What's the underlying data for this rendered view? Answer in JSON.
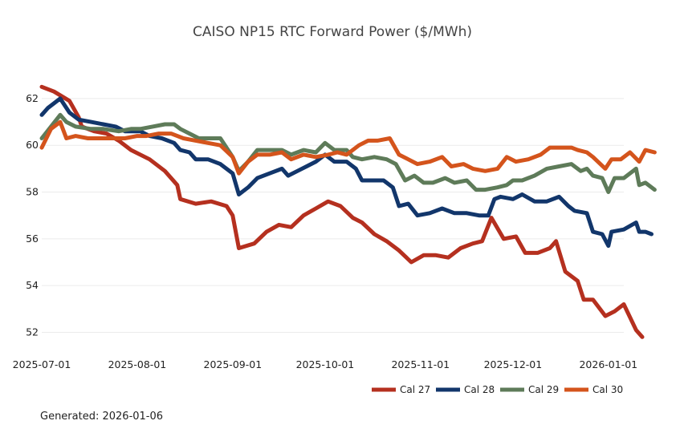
{
  "chart_data": {
    "type": "line",
    "title": "CAISO NP15 RTC Forward Power ($/MWh)",
    "xlabel": "",
    "ylabel": "",
    "x_start": "2025-07-01",
    "x_end": "2026-01-06",
    "ylim": [
      51.4,
      63.3
    ],
    "y_ticks": [
      52,
      54,
      56,
      58,
      60,
      62
    ],
    "x_ticks": [
      {
        "date": "2025-07-01",
        "label": "2025-07-01"
      },
      {
        "date": "2025-08-01",
        "label": "2025-08-01"
      },
      {
        "date": "2025-09-01",
        "label": "2025-09-01"
      },
      {
        "date": "2025-10-01",
        "label": "2025-10-01"
      },
      {
        "date": "2025-11-01",
        "label": "2025-11-01"
      },
      {
        "date": "2025-12-01",
        "label": "2025-12-01"
      },
      {
        "date": "2026-01-01",
        "label": "2026-01-01"
      }
    ],
    "grid": true,
    "legend_position": "bottom-right",
    "series": [
      {
        "name": "Cal 27",
        "color": "#b5301f",
        "points": [
          [
            "2025-07-01",
            62.5
          ],
          [
            "2025-07-05",
            62.3
          ],
          [
            "2025-07-10",
            61.9
          ],
          [
            "2025-07-13",
            61.2
          ],
          [
            "2025-07-14",
            60.8
          ],
          [
            "2025-07-18",
            60.6
          ],
          [
            "2025-07-22",
            60.5
          ],
          [
            "2025-07-26",
            60.2
          ],
          [
            "2025-07-30",
            59.8
          ],
          [
            "2025-08-05",
            59.4
          ],
          [
            "2025-08-10",
            58.9
          ],
          [
            "2025-08-14",
            58.3
          ],
          [
            "2025-08-15",
            57.7
          ],
          [
            "2025-08-20",
            57.5
          ],
          [
            "2025-08-25",
            57.6
          ],
          [
            "2025-08-30",
            57.4
          ],
          [
            "2025-09-01",
            57.0
          ],
          [
            "2025-09-03",
            55.6
          ],
          [
            "2025-09-08",
            55.8
          ],
          [
            "2025-09-12",
            56.3
          ],
          [
            "2025-09-16",
            56.6
          ],
          [
            "2025-09-20",
            56.5
          ],
          [
            "2025-09-24",
            57.0
          ],
          [
            "2025-09-28",
            57.3
          ],
          [
            "2025-10-02",
            57.6
          ],
          [
            "2025-10-06",
            57.4
          ],
          [
            "2025-10-10",
            56.9
          ],
          [
            "2025-10-13",
            56.7
          ],
          [
            "2025-10-17",
            56.2
          ],
          [
            "2025-10-21",
            55.9
          ],
          [
            "2025-10-25",
            55.5
          ],
          [
            "2025-10-29",
            55.0
          ],
          [
            "2025-11-02",
            55.3
          ],
          [
            "2025-11-06",
            55.3
          ],
          [
            "2025-11-10",
            55.2
          ],
          [
            "2025-11-14",
            55.6
          ],
          [
            "2025-11-18",
            55.8
          ],
          [
            "2025-11-21",
            55.9
          ],
          [
            "2025-11-24",
            56.9
          ],
          [
            "2025-11-28",
            56.0
          ],
          [
            "2025-12-02",
            56.1
          ],
          [
            "2025-12-05",
            55.4
          ],
          [
            "2025-12-09",
            55.4
          ],
          [
            "2025-12-13",
            55.6
          ],
          [
            "2025-12-15",
            55.9
          ],
          [
            "2025-12-18",
            54.6
          ],
          [
            "2025-12-22",
            54.2
          ],
          [
            "2025-12-24",
            53.4
          ],
          [
            "2025-12-27",
            53.4
          ],
          [
            "2025-12-31",
            52.7
          ],
          [
            "2026-01-03",
            52.9
          ],
          [
            "2026-01-06",
            53.2
          ],
          [
            "2026-01-10",
            52.1
          ],
          [
            "2026-01-12",
            51.8
          ]
        ]
      },
      {
        "name": "Cal 28",
        "color": "#12366b",
        "points": [
          [
            "2025-07-01",
            61.3
          ],
          [
            "2025-07-03",
            61.6
          ],
          [
            "2025-07-07",
            62.0
          ],
          [
            "2025-07-10",
            61.4
          ],
          [
            "2025-07-13",
            61.1
          ],
          [
            "2025-07-17",
            61.0
          ],
          [
            "2025-07-21",
            60.9
          ],
          [
            "2025-07-25",
            60.8
          ],
          [
            "2025-07-28",
            60.6
          ],
          [
            "2025-08-02",
            60.6
          ],
          [
            "2025-08-05",
            60.4
          ],
          [
            "2025-08-09",
            60.3
          ],
          [
            "2025-08-13",
            60.1
          ],
          [
            "2025-08-15",
            59.8
          ],
          [
            "2025-08-18",
            59.7
          ],
          [
            "2025-08-20",
            59.4
          ],
          [
            "2025-08-24",
            59.4
          ],
          [
            "2025-08-28",
            59.2
          ],
          [
            "2025-09-01",
            58.8
          ],
          [
            "2025-09-03",
            57.9
          ],
          [
            "2025-09-06",
            58.2
          ],
          [
            "2025-09-09",
            58.6
          ],
          [
            "2025-09-13",
            58.8
          ],
          [
            "2025-09-17",
            59.0
          ],
          [
            "2025-09-19",
            58.7
          ],
          [
            "2025-09-22",
            58.9
          ],
          [
            "2025-09-25",
            59.1
          ],
          [
            "2025-09-28",
            59.3
          ],
          [
            "2025-10-01",
            59.6
          ],
          [
            "2025-10-04",
            59.3
          ],
          [
            "2025-10-08",
            59.3
          ],
          [
            "2025-10-11",
            59.0
          ],
          [
            "2025-10-13",
            58.5
          ],
          [
            "2025-10-16",
            58.5
          ],
          [
            "2025-10-20",
            58.5
          ],
          [
            "2025-10-23",
            58.2
          ],
          [
            "2025-10-25",
            57.4
          ],
          [
            "2025-10-28",
            57.5
          ],
          [
            "2025-10-31",
            57.0
          ],
          [
            "2025-11-04",
            57.1
          ],
          [
            "2025-11-08",
            57.3
          ],
          [
            "2025-11-12",
            57.1
          ],
          [
            "2025-11-16",
            57.1
          ],
          [
            "2025-11-20",
            57.0
          ],
          [
            "2025-11-23",
            57.0
          ],
          [
            "2025-11-25",
            57.7
          ],
          [
            "2025-11-27",
            57.8
          ],
          [
            "2025-12-01",
            57.7
          ],
          [
            "2025-12-04",
            57.9
          ],
          [
            "2025-12-08",
            57.6
          ],
          [
            "2025-12-12",
            57.6
          ],
          [
            "2025-12-16",
            57.8
          ],
          [
            "2025-12-19",
            57.4
          ],
          [
            "2025-12-21",
            57.2
          ],
          [
            "2025-12-25",
            57.1
          ],
          [
            "2025-12-27",
            56.3
          ],
          [
            "2025-12-30",
            56.2
          ],
          [
            "2026-01-01",
            55.7
          ],
          [
            "2026-01-02",
            56.3
          ],
          [
            "2026-01-06",
            56.4
          ],
          [
            "2026-01-10",
            56.7
          ],
          [
            "2026-01-11",
            56.3
          ],
          [
            "2026-01-13",
            56.3
          ],
          [
            "2026-01-15",
            56.2
          ]
        ]
      },
      {
        "name": "Cal 29",
        "color": "#5e7b59",
        "points": [
          [
            "2025-07-01",
            60.3
          ],
          [
            "2025-07-04",
            60.8
          ],
          [
            "2025-07-07",
            61.3
          ],
          [
            "2025-07-09",
            61.0
          ],
          [
            "2025-07-12",
            60.8
          ],
          [
            "2025-07-17",
            60.7
          ],
          [
            "2025-07-21",
            60.7
          ],
          [
            "2025-07-26",
            60.6
          ],
          [
            "2025-07-30",
            60.7
          ],
          [
            "2025-08-02",
            60.7
          ],
          [
            "2025-08-06",
            60.8
          ],
          [
            "2025-08-10",
            60.9
          ],
          [
            "2025-08-13",
            60.9
          ],
          [
            "2025-08-15",
            60.7
          ],
          [
            "2025-08-18",
            60.5
          ],
          [
            "2025-08-21",
            60.3
          ],
          [
            "2025-08-24",
            60.3
          ],
          [
            "2025-08-28",
            60.3
          ],
          [
            "2025-09-01",
            59.5
          ],
          [
            "2025-09-03",
            58.9
          ],
          [
            "2025-09-06",
            59.3
          ],
          [
            "2025-09-09",
            59.8
          ],
          [
            "2025-09-13",
            59.8
          ],
          [
            "2025-09-17",
            59.8
          ],
          [
            "2025-09-20",
            59.6
          ],
          [
            "2025-09-24",
            59.8
          ],
          [
            "2025-09-28",
            59.7
          ],
          [
            "2025-10-01",
            60.1
          ],
          [
            "2025-10-04",
            59.8
          ],
          [
            "2025-10-08",
            59.8
          ],
          [
            "2025-10-10",
            59.5
          ],
          [
            "2025-10-13",
            59.4
          ],
          [
            "2025-10-17",
            59.5
          ],
          [
            "2025-10-21",
            59.4
          ],
          [
            "2025-10-24",
            59.2
          ],
          [
            "2025-10-27",
            58.5
          ],
          [
            "2025-10-30",
            58.7
          ],
          [
            "2025-11-02",
            58.4
          ],
          [
            "2025-11-05",
            58.4
          ],
          [
            "2025-11-09",
            58.6
          ],
          [
            "2025-11-12",
            58.4
          ],
          [
            "2025-11-16",
            58.5
          ],
          [
            "2025-11-19",
            58.1
          ],
          [
            "2025-11-22",
            58.1
          ],
          [
            "2025-11-26",
            58.2
          ],
          [
            "2025-11-29",
            58.3
          ],
          [
            "2025-12-01",
            58.5
          ],
          [
            "2025-12-04",
            58.5
          ],
          [
            "2025-12-08",
            58.7
          ],
          [
            "2025-12-12",
            59.0
          ],
          [
            "2025-12-16",
            59.1
          ],
          [
            "2025-12-20",
            59.2
          ],
          [
            "2025-12-23",
            58.9
          ],
          [
            "2025-12-25",
            59.0
          ],
          [
            "2025-12-27",
            58.7
          ],
          [
            "2025-12-30",
            58.6
          ],
          [
            "2026-01-01",
            58.0
          ],
          [
            "2026-01-03",
            58.6
          ],
          [
            "2026-01-06",
            58.6
          ],
          [
            "2026-01-10",
            59.0
          ],
          [
            "2026-01-11",
            58.3
          ],
          [
            "2026-01-13",
            58.4
          ],
          [
            "2026-01-16",
            58.1
          ]
        ]
      },
      {
        "name": "Cal 30",
        "color": "#d4541c",
        "points": [
          [
            "2025-07-01",
            59.9
          ],
          [
            "2025-07-04",
            60.7
          ],
          [
            "2025-07-07",
            61.0
          ],
          [
            "2025-07-09",
            60.3
          ],
          [
            "2025-07-12",
            60.4
          ],
          [
            "2025-07-16",
            60.3
          ],
          [
            "2025-07-20",
            60.3
          ],
          [
            "2025-07-24",
            60.3
          ],
          [
            "2025-07-28",
            60.3
          ],
          [
            "2025-08-01",
            60.4
          ],
          [
            "2025-08-04",
            60.4
          ],
          [
            "2025-08-08",
            60.5
          ],
          [
            "2025-08-12",
            60.5
          ],
          [
            "2025-08-16",
            60.3
          ],
          [
            "2025-08-20",
            60.2
          ],
          [
            "2025-08-24",
            60.1
          ],
          [
            "2025-08-28",
            60.0
          ],
          [
            "2025-09-01",
            59.5
          ],
          [
            "2025-09-03",
            58.8
          ],
          [
            "2025-09-06",
            59.3
          ],
          [
            "2025-09-09",
            59.6
          ],
          [
            "2025-09-13",
            59.6
          ],
          [
            "2025-09-17",
            59.7
          ],
          [
            "2025-09-20",
            59.4
          ],
          [
            "2025-09-24",
            59.6
          ],
          [
            "2025-09-28",
            59.5
          ],
          [
            "2025-10-02",
            59.6
          ],
          [
            "2025-10-05",
            59.7
          ],
          [
            "2025-10-08",
            59.6
          ],
          [
            "2025-10-12",
            60.0
          ],
          [
            "2025-10-15",
            60.2
          ],
          [
            "2025-10-18",
            60.2
          ],
          [
            "2025-10-22",
            60.3
          ],
          [
            "2025-10-25",
            59.6
          ],
          [
            "2025-10-28",
            59.4
          ],
          [
            "2025-10-31",
            59.2
          ],
          [
            "2025-11-04",
            59.3
          ],
          [
            "2025-11-08",
            59.5
          ],
          [
            "2025-11-11",
            59.1
          ],
          [
            "2025-11-15",
            59.2
          ],
          [
            "2025-11-18",
            59.0
          ],
          [
            "2025-11-22",
            58.9
          ],
          [
            "2025-11-26",
            59.0
          ],
          [
            "2025-11-29",
            59.5
          ],
          [
            "2025-12-02",
            59.3
          ],
          [
            "2025-12-06",
            59.4
          ],
          [
            "2025-12-10",
            59.6
          ],
          [
            "2025-12-13",
            59.9
          ],
          [
            "2025-12-17",
            59.9
          ],
          [
            "2025-12-20",
            59.9
          ],
          [
            "2025-12-22",
            59.8
          ],
          [
            "2025-12-25",
            59.7
          ],
          [
            "2025-12-27",
            59.5
          ],
          [
            "2025-12-31",
            59.0
          ],
          [
            "2026-01-02",
            59.4
          ],
          [
            "2026-01-05",
            59.4
          ],
          [
            "2026-01-08",
            59.7
          ],
          [
            "2026-01-11",
            59.3
          ],
          [
            "2026-01-13",
            59.8
          ],
          [
            "2026-01-16",
            59.7
          ]
        ]
      }
    ]
  },
  "footer": {
    "generated": "Generated: 2026-01-06"
  }
}
